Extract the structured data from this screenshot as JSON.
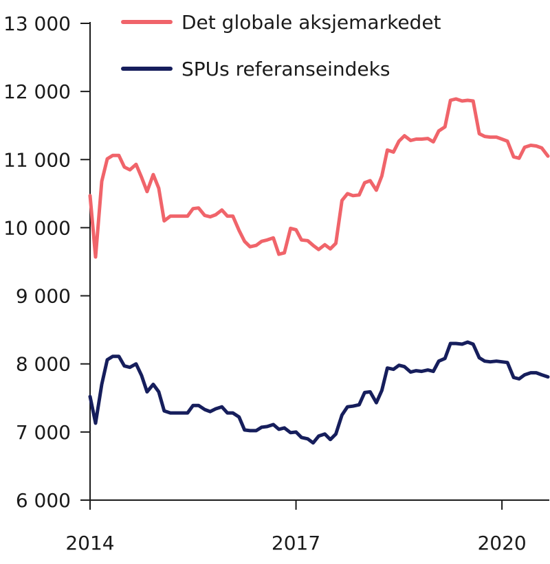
{
  "chart_data": {
    "type": "line",
    "title": "",
    "xlabel": "",
    "ylabel": "",
    "ylim": [
      6000,
      13000
    ],
    "y_ticks": [
      6000,
      7000,
      8000,
      9000,
      10000,
      11000,
      12000,
      13000
    ],
    "y_tick_labels": [
      "6 000",
      "7 000",
      "8 000",
      "9 000",
      "10 000",
      "11 000",
      "12 000",
      "13 000"
    ],
    "x_ticks": [
      2014,
      2017,
      2020
    ],
    "x_tick_labels": [
      "2014",
      "2017",
      "2020"
    ],
    "xlim": [
      2014.0,
      2020.67
    ],
    "legend_position": "top",
    "series": [
      {
        "name": "Det globale aksjemarkedet",
        "color": "#f0646a",
        "x": [
          2014.0,
          2014.08,
          2014.17,
          2014.25,
          2014.33,
          2014.42,
          2014.5,
          2014.58,
          2014.67,
          2014.75,
          2014.83,
          2014.92,
          2015.0,
          2015.08,
          2015.17,
          2015.25,
          2015.33,
          2015.42,
          2015.5,
          2015.58,
          2015.67,
          2015.75,
          2015.83,
          2015.92,
          2016.0,
          2016.08,
          2016.17,
          2016.25,
          2016.33,
          2016.42,
          2016.5,
          2016.58,
          2016.67,
          2016.75,
          2016.83,
          2016.92,
          2017.0,
          2017.08,
          2017.17,
          2017.25,
          2017.33,
          2017.42,
          2017.5,
          2017.58,
          2017.67,
          2017.75,
          2017.83,
          2017.92,
          2018.0,
          2018.08,
          2018.17,
          2018.25,
          2018.33,
          2018.42,
          2018.5,
          2018.58,
          2018.67,
          2018.75,
          2018.83,
          2018.92,
          2019.0,
          2019.08,
          2019.17,
          2019.25,
          2019.33,
          2019.42,
          2019.5,
          2019.58,
          2019.67,
          2019.75,
          2019.83,
          2019.92,
          2020.0,
          2020.08,
          2020.17,
          2020.25,
          2020.33,
          2020.42,
          2020.5,
          2020.58,
          2020.67
        ],
        "values": [
          10470,
          9570,
          10680,
          11010,
          11060,
          11060,
          10890,
          10850,
          10930,
          10740,
          10530,
          10780,
          10580,
          10100,
          10170,
          10170,
          10170,
          10170,
          10280,
          10290,
          10180,
          10160,
          10190,
          10260,
          10170,
          10170,
          9960,
          9800,
          9720,
          9740,
          9800,
          9820,
          9850,
          9610,
          9630,
          9990,
          9970,
          9820,
          9810,
          9740,
          9680,
          9750,
          9690,
          9770,
          10400,
          10500,
          10470,
          10480,
          10660,
          10690,
          10550,
          10760,
          11140,
          11110,
          11270,
          11350,
          11280,
          11300,
          11300,
          11310,
          11260,
          11420,
          11480,
          11870,
          11890,
          11860,
          11870,
          11860,
          11380,
          11340,
          11330,
          11330,
          11300,
          11270,
          11040,
          11020,
          11180,
          11210,
          11200,
          11170,
          11050
        ]
      },
      {
        "name": "SPUs referanseindeks",
        "color": "#161e5c",
        "x": [
          2014.0,
          2014.08,
          2014.17,
          2014.25,
          2014.33,
          2014.42,
          2014.5,
          2014.58,
          2014.67,
          2014.75,
          2014.83,
          2014.92,
          2015.0,
          2015.08,
          2015.17,
          2015.25,
          2015.33,
          2015.42,
          2015.5,
          2015.58,
          2015.67,
          2015.75,
          2015.83,
          2015.92,
          2016.0,
          2016.08,
          2016.17,
          2016.25,
          2016.33,
          2016.42,
          2016.5,
          2016.58,
          2016.67,
          2016.75,
          2016.83,
          2016.92,
          2017.0,
          2017.08,
          2017.17,
          2017.25,
          2017.33,
          2017.42,
          2017.5,
          2017.58,
          2017.67,
          2017.75,
          2017.83,
          2017.92,
          2018.0,
          2018.08,
          2018.17,
          2018.25,
          2018.33,
          2018.42,
          2018.5,
          2018.58,
          2018.67,
          2018.75,
          2018.83,
          2018.92,
          2019.0,
          2019.08,
          2019.17,
          2019.25,
          2019.33,
          2019.42,
          2019.5,
          2019.58,
          2019.67,
          2019.75,
          2019.83,
          2019.92,
          2020.0,
          2020.08,
          2020.17,
          2020.25,
          2020.33,
          2020.42,
          2020.5,
          2020.58,
          2020.67
        ],
        "values": [
          7520,
          7130,
          7700,
          8060,
          8110,
          8110,
          7970,
          7950,
          8000,
          7830,
          7590,
          7700,
          7590,
          7310,
          7280,
          7280,
          7280,
          7280,
          7390,
          7390,
          7330,
          7300,
          7340,
          7370,
          7280,
          7280,
          7220,
          7030,
          7020,
          7020,
          7070,
          7080,
          7110,
          7040,
          7060,
          6990,
          7000,
          6920,
          6900,
          6840,
          6940,
          6970,
          6890,
          6970,
          7250,
          7370,
          7380,
          7400,
          7580,
          7590,
          7430,
          7610,
          7940,
          7920,
          7980,
          7960,
          7880,
          7900,
          7890,
          7910,
          7890,
          8040,
          8080,
          8300,
          8300,
          8290,
          8320,
          8290,
          8090,
          8040,
          8030,
          8040,
          8030,
          8020,
          7800,
          7780,
          7840,
          7870,
          7870,
          7840,
          7810
        ]
      }
    ]
  }
}
